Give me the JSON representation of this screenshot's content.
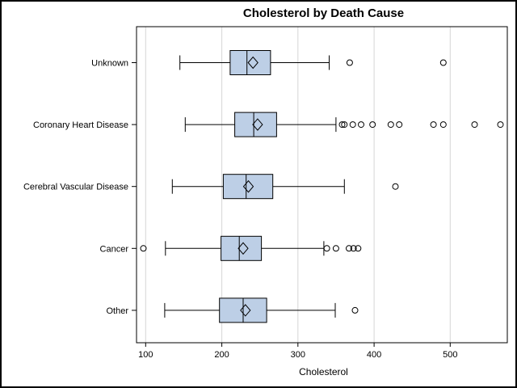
{
  "chart_data": {
    "type": "boxplot",
    "orientation": "horizontal",
    "title": "Cholesterol by Death Cause",
    "xlabel": "Cholesterol",
    "ylabel": "",
    "xticks": [
      100,
      200,
      300,
      400,
      500
    ],
    "xlim": [
      88,
      575
    ],
    "grid": "vertical-on",
    "categories": [
      "Unknown",
      "Coronary Heart Disease",
      "Cerebral Vascular Disease",
      "Cancer",
      "Other"
    ],
    "series": [
      {
        "category": "Unknown",
        "whisker_low": 145,
        "q1": 211,
        "median": 233,
        "mean": 241,
        "q3": 264,
        "whisker_high": 341,
        "outliers": [
          368,
          491
        ]
      },
      {
        "category": "Coronary Heart Disease",
        "whisker_low": 152,
        "q1": 217,
        "median": 242,
        "mean": 247,
        "q3": 272,
        "whisker_high": 350,
        "outliers": [
          358,
          361,
          372,
          383,
          398,
          422,
          433,
          478,
          491,
          532,
          566
        ]
      },
      {
        "category": "Cerebral Vascular Disease",
        "whisker_low": 135,
        "q1": 202,
        "median": 232,
        "mean": 235,
        "q3": 267,
        "whisker_high": 361,
        "outliers": [
          428
        ]
      },
      {
        "category": "Cancer",
        "whisker_low": 126,
        "q1": 199,
        "median": 223,
        "mean": 228,
        "q3": 252,
        "whisker_high": 334,
        "outliers": [
          97,
          338,
          350,
          367,
          373,
          379
        ]
      },
      {
        "category": "Other",
        "whisker_low": 125,
        "q1": 197,
        "median": 228,
        "mean": 231,
        "q3": 259,
        "whisker_high": 349,
        "outliers": [
          375
        ]
      }
    ],
    "colors": {
      "box_fill": "#bdcfe6",
      "box_border": "#000000",
      "whisker": "#000000",
      "grid": "#d6d6d6",
      "frame": "#000000",
      "text": "#000000",
      "background": "#ffffff"
    },
    "marker_legend": {
      "diamond": "mean",
      "circle": "outlier"
    }
  }
}
